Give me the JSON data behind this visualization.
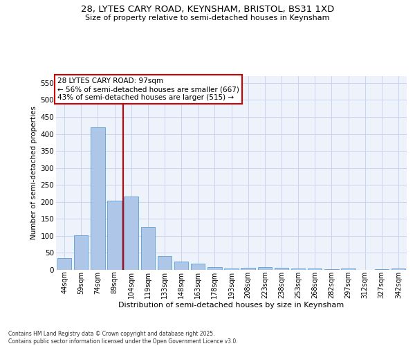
{
  "title_line1": "28, LYTES CARY ROAD, KEYNSHAM, BRISTOL, BS31 1XD",
  "title_line2": "Size of property relative to semi-detached houses in Keynsham",
  "xlabel": "Distribution of semi-detached houses by size in Keynsham",
  "ylabel": "Number of semi-detached properties",
  "categories": [
    "44sqm",
    "59sqm",
    "74sqm",
    "89sqm",
    "104sqm",
    "119sqm",
    "133sqm",
    "148sqm",
    "163sqm",
    "178sqm",
    "193sqm",
    "208sqm",
    "223sqm",
    "238sqm",
    "253sqm",
    "268sqm",
    "282sqm",
    "297sqm",
    "312sqm",
    "327sqm",
    "342sqm"
  ],
  "values": [
    35,
    102,
    420,
    204,
    216,
    127,
    40,
    25,
    19,
    9,
    4,
    6,
    8,
    7,
    5,
    4,
    2,
    4,
    0,
    2,
    4
  ],
  "bar_color": "#aec6e8",
  "bar_edge_color": "#5a9fd4",
  "vline_x": 3.5,
  "vline_color": "#cc0000",
  "annotation_text": "28 LYTES CARY ROAD: 97sqm\n← 56% of semi-detached houses are smaller (667)\n43% of semi-detached houses are larger (515) →",
  "annotation_box_color": "#ffffff",
  "annotation_box_edge": "#cc0000",
  "background_color": "#eef2fb",
  "grid_color": "#c8d4f0",
  "footer_text": "Contains HM Land Registry data © Crown copyright and database right 2025.\nContains public sector information licensed under the Open Government Licence v3.0.",
  "ylim": [
    0,
    570
  ],
  "yticks": [
    0,
    50,
    100,
    150,
    200,
    250,
    300,
    350,
    400,
    450,
    500,
    550
  ]
}
